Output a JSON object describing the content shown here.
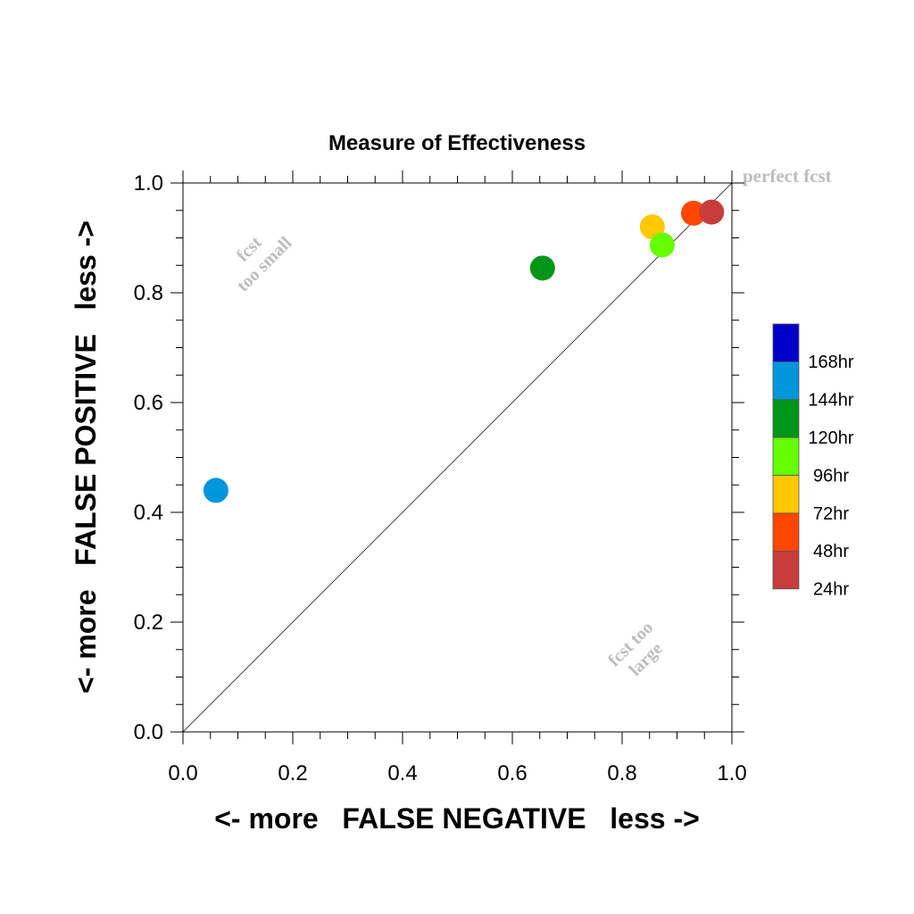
{
  "chart_data": {
    "type": "scatter",
    "title": "Measure of Effectiveness",
    "xlabel": "<- more   FALSE NEGATIVE   less ->",
    "ylabel": "<- more   FALSE POSITIVE   less ->",
    "xlim": [
      0.0,
      1.0
    ],
    "ylim": [
      0.0,
      1.0
    ],
    "x_ticks": [
      "0.0",
      "0.2",
      "0.4",
      "0.6",
      "0.8",
      "1.0"
    ],
    "y_ticks": [
      "0.0",
      "0.2",
      "0.4",
      "0.6",
      "0.8",
      "1.0"
    ],
    "grid": false,
    "reference_line": "diagonal y = x",
    "annotations": {
      "perfect": "perfect fcst",
      "too_small_line1": "fcst",
      "too_small_line2": "too small",
      "too_large_line1": "fcst too",
      "too_large_line2": "large"
    },
    "legend_position": "right",
    "legend": [
      {
        "label": "168hr",
        "color": "#0000c8"
      },
      {
        "label": "144hr",
        "color": "#0096dc"
      },
      {
        "label": "120hr",
        "color": "#009619"
      },
      {
        "label": "96hr",
        "color": "#64ff00"
      },
      {
        "label": "72hr",
        "color": "#ffc800"
      },
      {
        "label": "48hr",
        "color": "#ff4600"
      },
      {
        "label": "24hr",
        "color": "#c83c3c"
      }
    ],
    "points": [
      {
        "label": "144hr",
        "x": 0.06,
        "y": 0.44,
        "color": "#0096dc"
      },
      {
        "label": "120hr",
        "x": 0.655,
        "y": 0.845,
        "color": "#009619"
      },
      {
        "label": "72hr",
        "x": 0.855,
        "y": 0.92,
        "color": "#ffc800"
      },
      {
        "label": "96hr",
        "x": 0.873,
        "y": 0.887,
        "color": "#64ff00"
      },
      {
        "label": "48hr",
        "x": 0.93,
        "y": 0.945,
        "color": "#ff4600"
      },
      {
        "label": "24hr",
        "x": 0.963,
        "y": 0.947,
        "color": "#c83c3c"
      }
    ]
  }
}
